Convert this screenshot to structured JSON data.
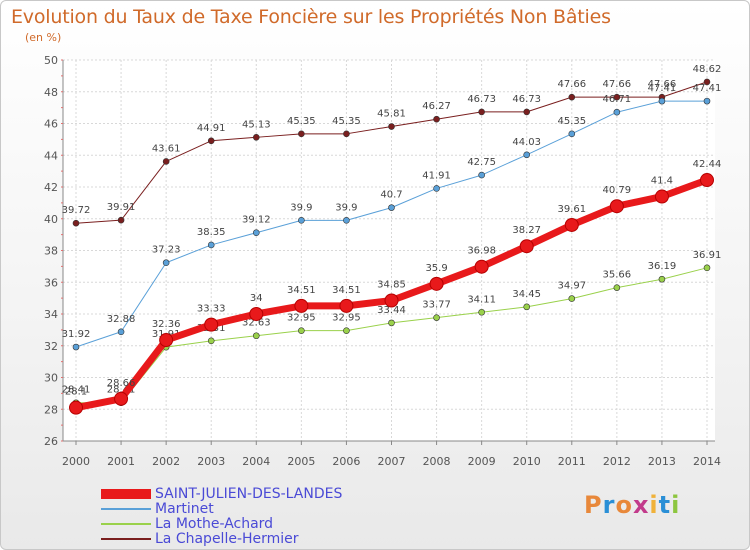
{
  "header": {
    "title": "Evolution du Taux de Taxe Foncière sur les Propriétés Non Bâties",
    "subtitle": "(en %)"
  },
  "logo": {
    "letters": [
      "P",
      "r",
      "o",
      "x",
      "i",
      "t",
      "i"
    ],
    "colors": [
      "#e8883a",
      "#2a8fd6",
      "#e8883a",
      "#c23b8b",
      "#f0b23a",
      "#2a8fd6",
      "#8dc63f"
    ]
  },
  "chart_data": {
    "type": "line",
    "title": "Evolution du Taux de Taxe Foncière sur les Propriétés Non Bâties",
    "ylabel": "(en %)",
    "xlabel": "",
    "x": [
      "2000",
      "2001",
      "2002",
      "2003",
      "2004",
      "2005",
      "2006",
      "2007",
      "2008",
      "2009",
      "2010",
      "2011",
      "2012",
      "2013",
      "2014"
    ],
    "ylim": [
      26,
      50
    ],
    "yticks": [
      "26",
      "28",
      "30",
      "32",
      "34",
      "36",
      "38",
      "40",
      "42",
      "44",
      "46",
      "48",
      "50"
    ],
    "grid": true,
    "legend_position": "bottom-left",
    "series": [
      {
        "name": "La Chapelle-Hermier",
        "color": "#7a1f1f",
        "width": 1,
        "values": [
          39.72,
          39.91,
          43.61,
          44.91,
          45.13,
          45.35,
          45.35,
          45.81,
          46.27,
          46.73,
          46.73,
          47.66,
          47.66,
          47.66,
          48.62
        ],
        "labels": [
          "39.72",
          "39.91",
          "43.61",
          "44.91",
          "45.13",
          "45.35",
          "45.35",
          "45.81",
          "46.27",
          "46.73",
          "46.73",
          "47.66",
          "47.66",
          "47.66",
          "48.62"
        ]
      },
      {
        "name": "Martinet",
        "color": "#5aa0d8",
        "width": 1,
        "values": [
          31.92,
          32.88,
          37.23,
          38.35,
          39.12,
          39.9,
          39.9,
          40.7,
          41.91,
          42.75,
          44.03,
          45.35,
          46.71,
          47.41,
          47.41
        ],
        "labels": [
          "31.92",
          "32.88",
          "37.23",
          "38.35",
          "39.12",
          "39.9",
          "39.9",
          "40.7",
          "41.91",
          "42.75",
          "44.03",
          "45.35",
          "46.71",
          "47.41",
          "47.41"
        ]
      },
      {
        "name": "La Mothe-Achard",
        "color": "#9ad14b",
        "width": 1,
        "values": [
          28.41,
          28.41,
          31.91,
          32.31,
          32.63,
          32.95,
          32.95,
          33.44,
          33.77,
          34.11,
          34.45,
          34.97,
          35.66,
          36.19,
          36.91
        ],
        "labels": [
          "28.41",
          "28.41",
          "31.91",
          "32.31",
          "32.63",
          "32.95",
          "32.95",
          "33.44",
          "33.77",
          "34.11",
          "34.45",
          "34.97",
          "35.66",
          "36.19",
          "36.91"
        ]
      },
      {
        "name": "SAINT-JULIEN-DES-LANDES",
        "color": "#e8191b",
        "width": 7,
        "values": [
          28.1,
          28.66,
          32.36,
          33.33,
          34,
          34.51,
          34.51,
          34.85,
          35.9,
          36.98,
          38.27,
          39.61,
          40.79,
          41.4,
          42.44
        ],
        "labels": [
          "28.1",
          "28.66",
          "32.36",
          "33.33",
          "34",
          "34.51",
          "34.51",
          "34.85",
          "35.9",
          "36.98",
          "38.27",
          "39.61",
          "40.79",
          "41.4",
          "42.44"
        ]
      }
    ],
    "legend": [
      {
        "name": "SAINT-JULIEN-DES-LANDES",
        "color": "#e8191b",
        "text_color": "#4a4ad6",
        "width": 10
      },
      {
        "name": "Martinet",
        "color": "#5aa0d8",
        "text_color": "#4a4ad6",
        "width": 2
      },
      {
        "name": "La Mothe-Achard",
        "color": "#9ad14b",
        "text_color": "#4a4ad6",
        "width": 2
      },
      {
        "name": "La Chapelle-Hermier",
        "color": "#7a1f1f",
        "text_color": "#4a4ad6",
        "width": 2
      }
    ]
  }
}
